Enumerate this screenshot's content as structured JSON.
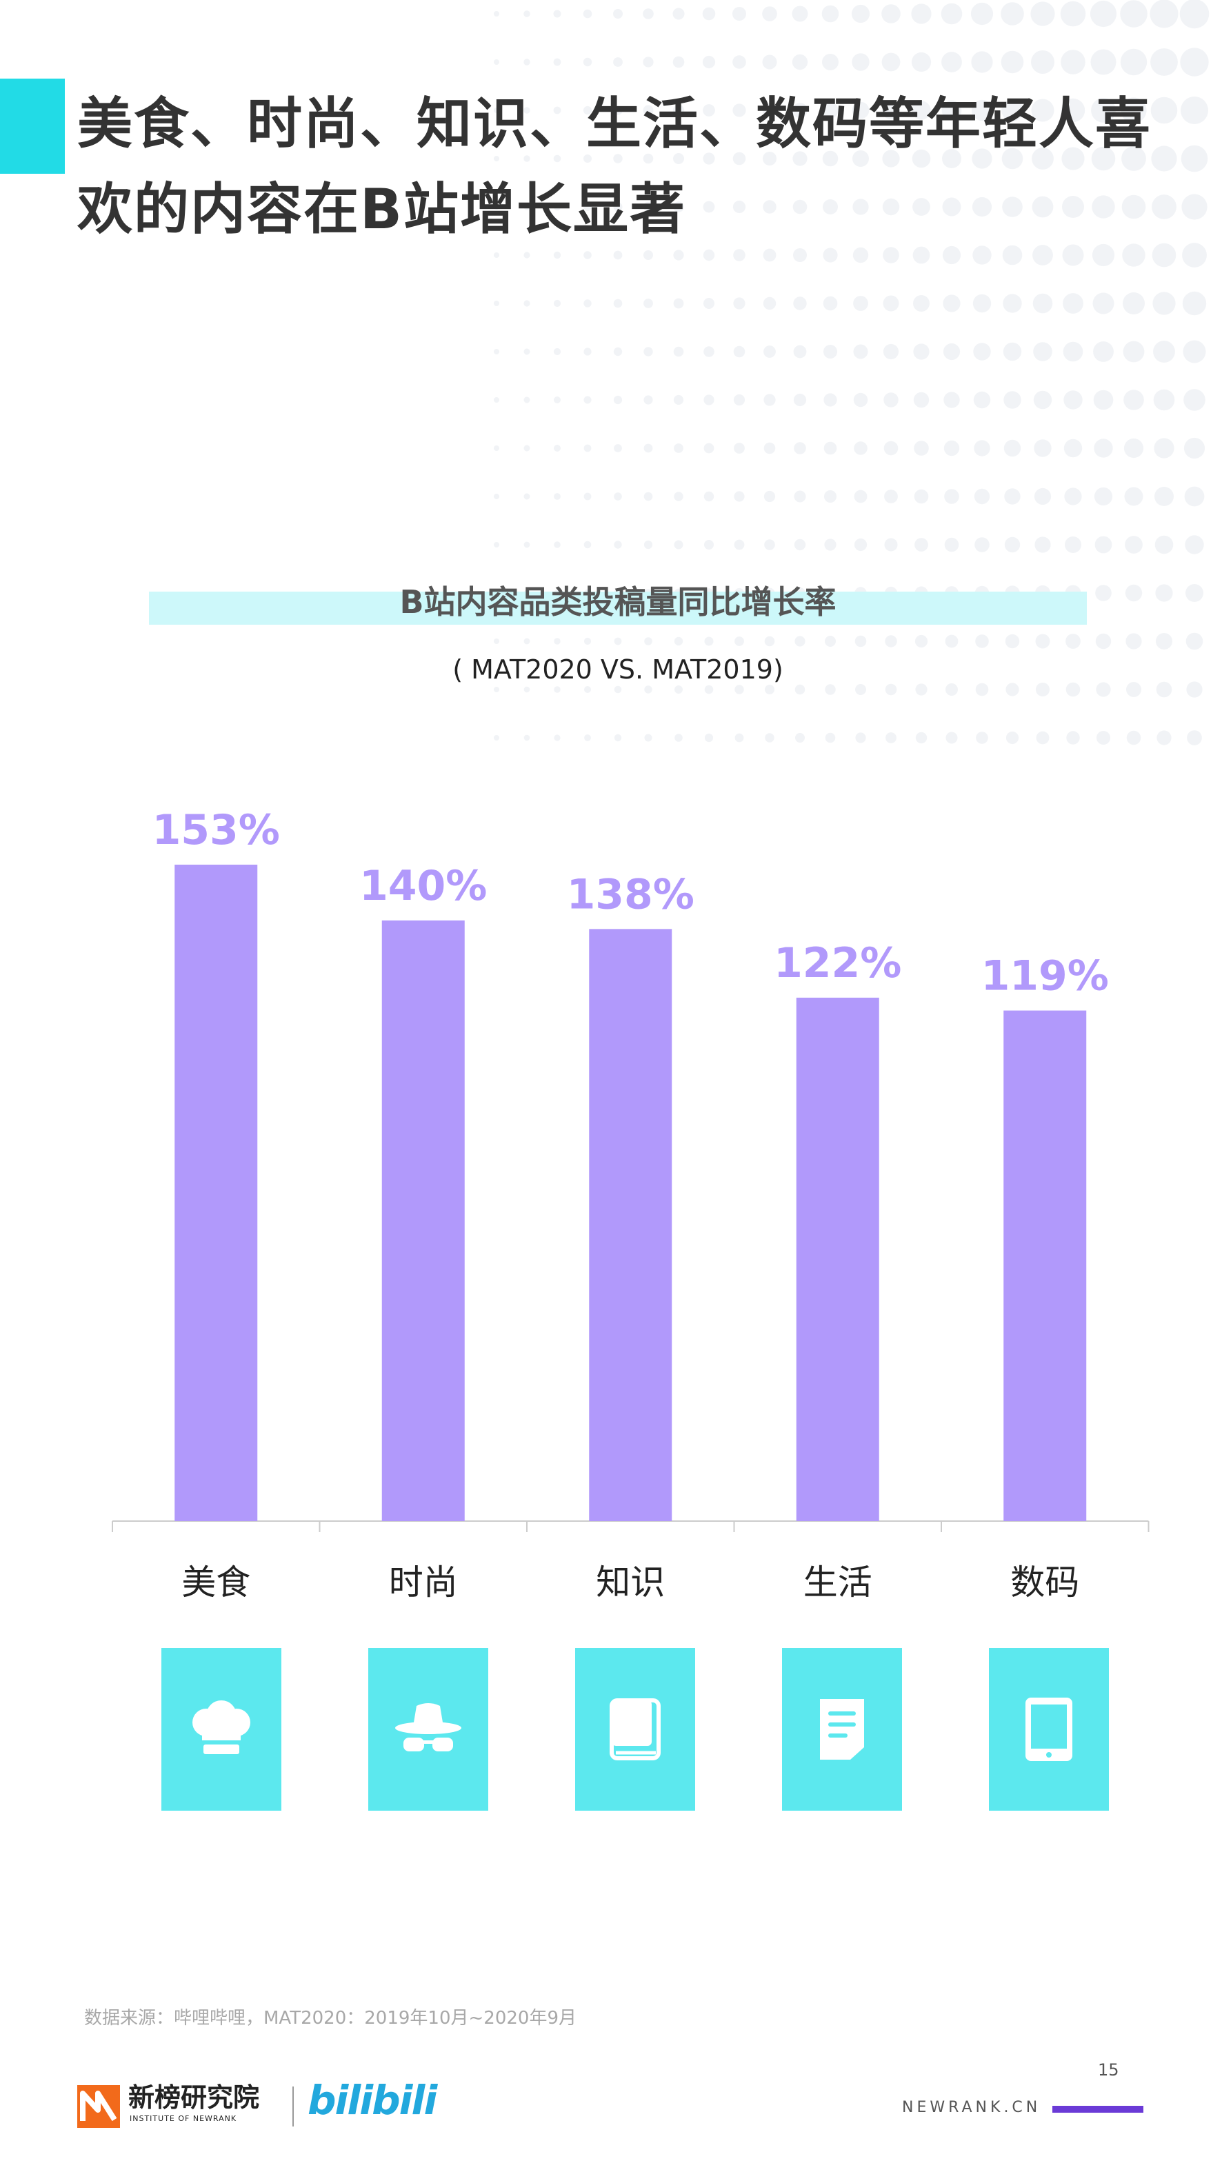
{
  "page": {
    "title": "美食、时尚、知识、生活、数码等年轻人喜欢的内容在B站增长显著",
    "page_number": "15",
    "source": "数据来源：哔哩哔哩，MAT2020：2019年10月~2020年9月",
    "footer_url": "NEWRANK.CN",
    "accent_color": "#22dbe6",
    "bar_color": "#b199fb",
    "label_color": "#b199fb",
    "icon_tile_color": "#5ce8ee"
  },
  "logos": {
    "newrank_cn": "新榜研究院",
    "newrank_en": "INSTITUTE OF NEWRANK",
    "bilibili": "bilibili"
  },
  "chart_data": {
    "type": "bar",
    "title": "B站内容品类投稿量同比增长率",
    "subtitle": "( MAT2020 VS. MAT2019)",
    "categories": [
      "美食",
      "时尚",
      "知识",
      "生活",
      "数码"
    ],
    "values": [
      153,
      140,
      138,
      122,
      119
    ],
    "value_labels": [
      "153%",
      "140%",
      "138%",
      "122%",
      "119%"
    ],
    "unit": "%",
    "ylim": [
      0,
      153
    ],
    "grid": false,
    "legend": "none",
    "category_icons": [
      "chef-hat-icon",
      "hat-glasses-icon",
      "book-icon",
      "document-icon",
      "tablet-icon"
    ]
  }
}
